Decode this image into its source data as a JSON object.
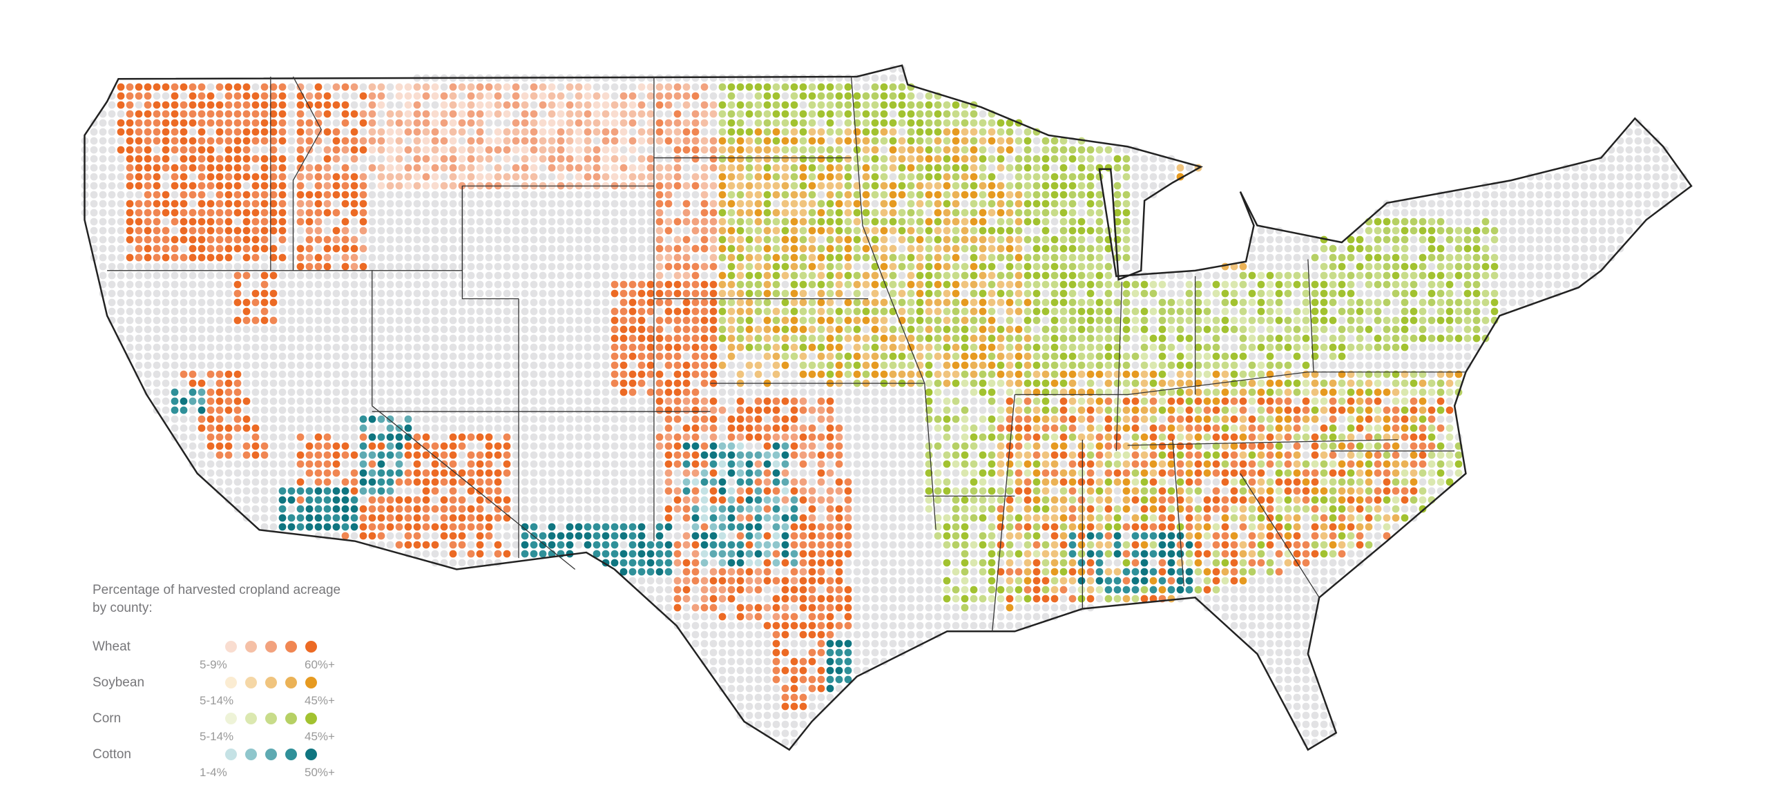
{
  "legend": {
    "title": "Percentage of harvested cropland acreage by county:",
    "crops": [
      {
        "name": "Wheat",
        "min_label": "5-9%",
        "max_label": "60%+",
        "colors": [
          "#f9ddd0",
          "#f5c0a6",
          "#f2a27e",
          "#f08652",
          "#ec6a24"
        ]
      },
      {
        "name": "Soybean",
        "min_label": "5-14%",
        "max_label": "45%+",
        "colors": [
          "#fbecd2",
          "#f5d7a6",
          "#f0c47e",
          "#ebb256",
          "#e69a20"
        ]
      },
      {
        "name": "Corn",
        "min_label": "5-14%",
        "max_label": "45%+",
        "colors": [
          "#eef3d8",
          "#dbe8b0",
          "#c8dc8a",
          "#b6d064",
          "#a2c230"
        ]
      },
      {
        "name": "Cotton",
        "min_label": "1-4%",
        "max_label": "50%+",
        "colors": [
          "#c5e2e5",
          "#8fc6cc",
          "#5eaab2",
          "#2f9099",
          "#0f7580"
        ]
      }
    ]
  },
  "map": {
    "empty_dot_color": "#e2e2e4",
    "border_color": "#222222"
  }
}
